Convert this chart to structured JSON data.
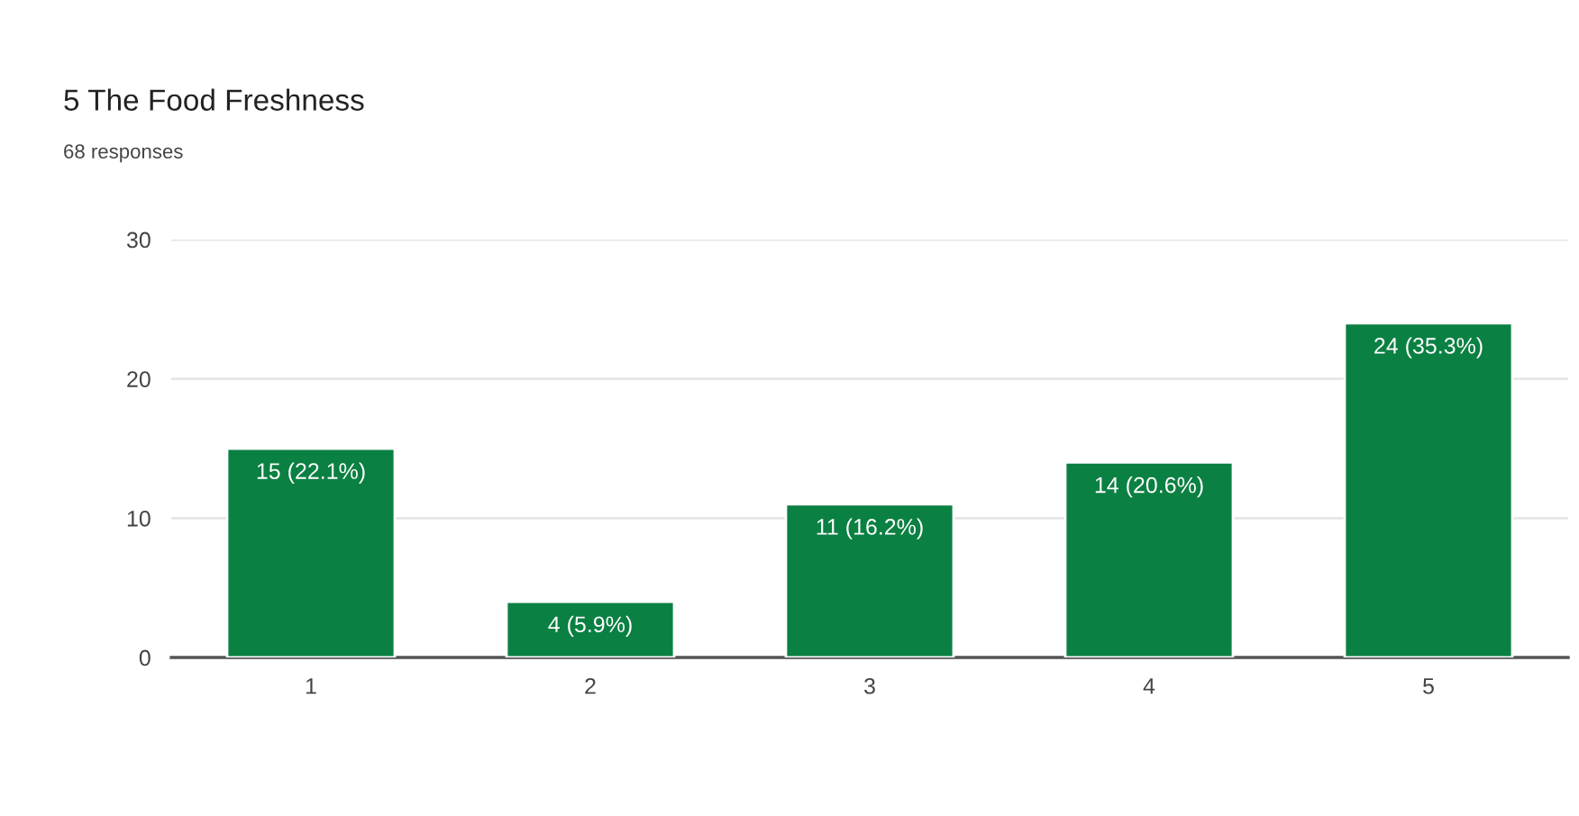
{
  "chart_data": {
    "type": "bar",
    "title": "5 The Food Freshness",
    "subtitle": "68 responses",
    "categories": [
      "1",
      "2",
      "3",
      "4",
      "5"
    ],
    "values": [
      15,
      4,
      11,
      14,
      24
    ],
    "value_labels": [
      "15 (22.1%)",
      "4 (5.9%)",
      "11 (16.2%)",
      "14 (20.6%)",
      "24 (35.3%)"
    ],
    "color": "#0b8043",
    "ylim": [
      0,
      30
    ],
    "yticks": [
      0,
      10,
      20,
      30
    ],
    "grid": "y",
    "legend": false
  }
}
